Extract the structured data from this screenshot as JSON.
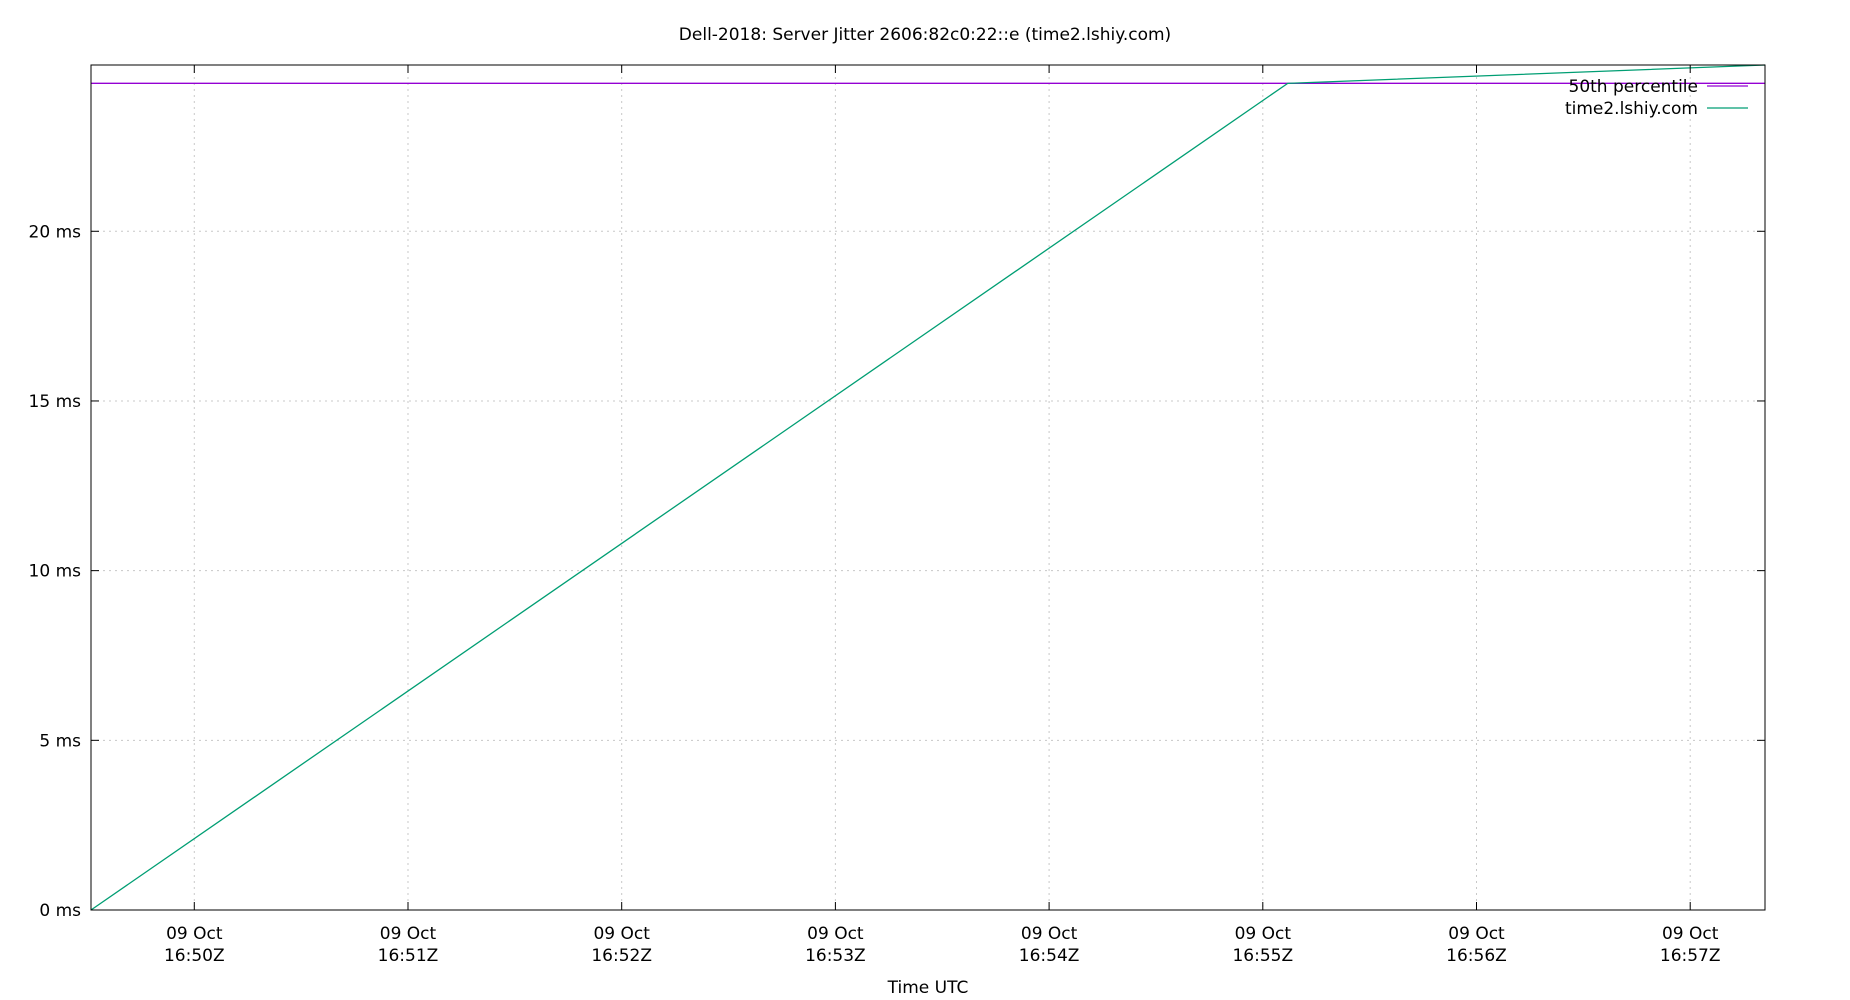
{
  "chart_data": {
    "type": "line",
    "title": "Dell-2018: Server Jitter 2606:82c0:22::e (time2.lshiy.com)",
    "xlabel": "Time UTC",
    "ylabel": "",
    "x_range": [
      "2024-10-09T16:49:31Z",
      "2024-10-09T16:57:21Z"
    ],
    "y_range": [
      0,
      24.9
    ],
    "y_unit": "ms",
    "y_ticks": [
      0,
      5,
      10,
      15,
      20
    ],
    "y_tick_labels": [
      "0 ms",
      "5 ms",
      "10 ms",
      "15 ms",
      "20 ms"
    ],
    "x_ticks": [
      "2024-10-09T16:50:00Z",
      "2024-10-09T16:51:00Z",
      "2024-10-09T16:52:00Z",
      "2024-10-09T16:53:00Z",
      "2024-10-09T16:54:00Z",
      "2024-10-09T16:55:00Z",
      "2024-10-09T16:56:00Z",
      "2024-10-09T16:57:00Z"
    ],
    "x_tick_labels": [
      [
        "09 Oct",
        "16:50Z"
      ],
      [
        "09 Oct",
        "16:51Z"
      ],
      [
        "09 Oct",
        "16:52Z"
      ],
      [
        "09 Oct",
        "16:53Z"
      ],
      [
        "09 Oct",
        "16:54Z"
      ],
      [
        "09 Oct",
        "16:55Z"
      ],
      [
        "09 Oct",
        "16:56Z"
      ],
      [
        "09 Oct",
        "16:57Z"
      ]
    ],
    "grid": true,
    "legend_position": "top-right",
    "series": [
      {
        "name": "50th percentile",
        "color": "#9400d3",
        "x": [
          "2024-10-09T16:49:31Z",
          "2024-10-09T16:57:21Z"
        ],
        "y": [
          24.36,
          24.36
        ]
      },
      {
        "name": "time2.lshiy.com",
        "color": "#009e73",
        "x": [
          "2024-10-09T16:49:31Z",
          "2024-10-09T16:55:07Z",
          "2024-10-09T16:57:21Z"
        ],
        "y": [
          0,
          24.36,
          24.9
        ]
      }
    ]
  }
}
